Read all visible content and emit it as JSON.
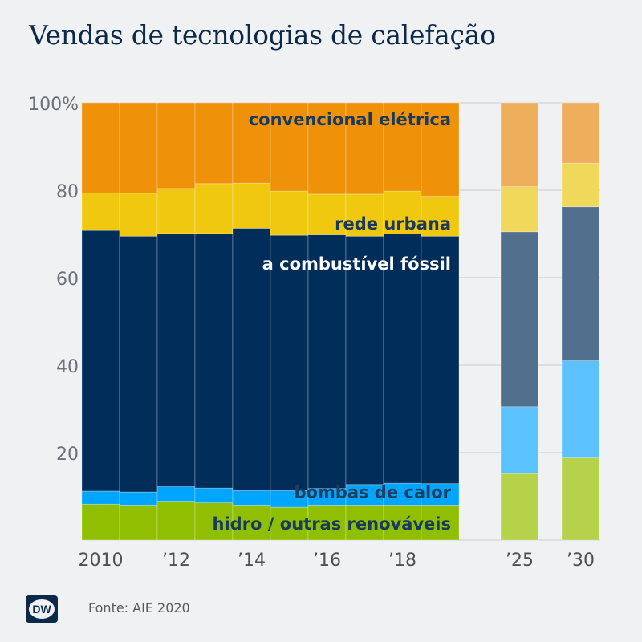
{
  "title": "Vendas de tecnologias de calefação",
  "source": "Fonte: AIE 2020",
  "logo_text": "DW",
  "chart_data": {
    "type": "bar",
    "stacked": true,
    "categories": [
      "2010",
      "2011",
      "2012",
      "2013",
      "2014",
      "2015",
      "2016",
      "2017",
      "2018",
      "2019",
      "2025",
      "2030"
    ],
    "tick_labels": [
      "2010",
      "’12",
      "’14",
      "’16",
      "’18",
      "’25",
      "’30"
    ],
    "tick_categories": [
      "2010",
      "2012",
      "2014",
      "2016",
      "2018",
      "2025",
      "2030"
    ],
    "projected_from": "2025",
    "ylim": [
      0,
      100
    ],
    "yticks": [
      0,
      20,
      40,
      60,
      80,
      100
    ],
    "ytick_labels": [
      "",
      "20",
      "40",
      "60",
      "80",
      "100%"
    ],
    "series": [
      {
        "name": "hidro / outras renováveis",
        "color": "#8fbf00",
        "color_projected": "#b6d24a",
        "values": [
          8.2,
          8.0,
          8.9,
          8.5,
          8.0,
          7.5,
          8.0,
          8.0,
          8.0,
          8.0,
          15.2,
          18.8
        ]
      },
      {
        "name": "bombas de calor",
        "color": "#00a5ff",
        "color_projected": "#5cc1ff",
        "values": [
          3.0,
          3.0,
          3.3,
          3.4,
          3.3,
          3.8,
          3.8,
          4.7,
          5.0,
          4.9,
          15.3,
          22.2
        ]
      },
      {
        "name": "a combustível fóssil",
        "color": "#002d5a",
        "color_projected": "#536f8e",
        "values": [
          59.6,
          58.5,
          57.9,
          58.2,
          60.0,
          58.4,
          58.0,
          56.8,
          57.0,
          56.6,
          40.0,
          35.2
        ]
      },
      {
        "name": "rede urbana",
        "color": "#f0c80f",
        "color_projected": "#f0d85a",
        "values": [
          8.6,
          9.8,
          10.3,
          11.4,
          10.3,
          10.1,
          9.3,
          9.6,
          9.8,
          9.1,
          10.3,
          10.0
        ]
      },
      {
        "name": "convencional elétrica",
        "color": "#f0910a",
        "color_projected": "#efae5c",
        "values": [
          20.6,
          20.7,
          19.6,
          18.5,
          18.4,
          20.2,
          20.9,
          20.9,
          20.2,
          21.4,
          19.2,
          13.8
        ]
      }
    ]
  }
}
